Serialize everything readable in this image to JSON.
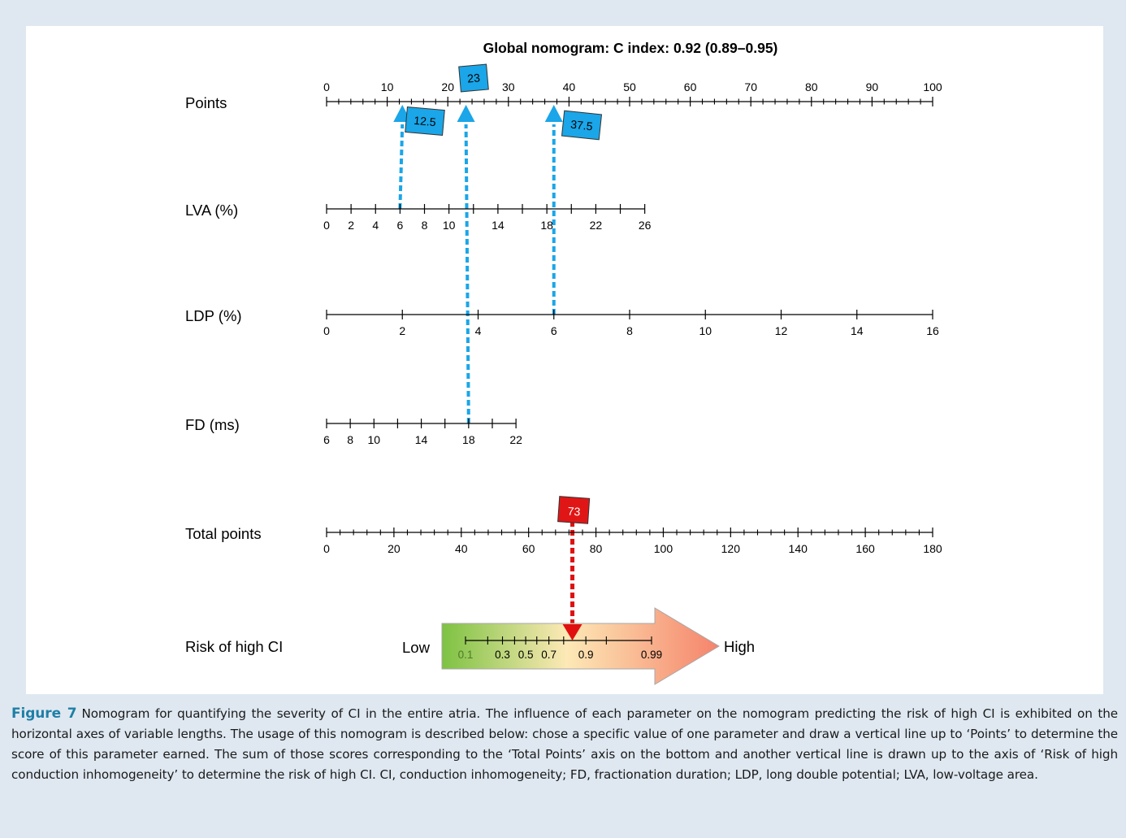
{
  "chart_data": {
    "type": "nomogram",
    "title": "Global nomogram: C index: 0.92 (0.89–0.95)",
    "axes": [
      {
        "key": "points",
        "label": "Points",
        "min": 0,
        "max": 100,
        "major": [
          0,
          10,
          20,
          30,
          40,
          50,
          60,
          70,
          80,
          90,
          100
        ],
        "minor_step": 2,
        "tick_labels": [
          "0",
          "10",
          "20",
          "30",
          "40",
          "50",
          "60",
          "70",
          "80",
          "90",
          "100"
        ]
      },
      {
        "key": "lva",
        "label": "LVA (%)",
        "min": 0,
        "max": 26,
        "major": [
          0,
          2,
          4,
          6,
          8,
          10,
          12,
          14,
          16,
          18,
          20,
          22,
          24,
          26
        ],
        "tick_labels": [
          "0",
          "2",
          "4",
          "6",
          "8",
          "10",
          "14",
          "18",
          "22",
          "26"
        ],
        "tick_label_values": [
          0,
          2,
          4,
          6,
          8,
          10,
          14,
          18,
          22,
          26
        ],
        "points_range": [
          0,
          52.5
        ]
      },
      {
        "key": "ldp",
        "label": "LDP (%)",
        "min": 0,
        "max": 16,
        "major": [
          0,
          2,
          4,
          6,
          8,
          10,
          12,
          14,
          16
        ],
        "tick_labels": [
          "0",
          "2",
          "4",
          "6",
          "8",
          "10",
          "12",
          "14",
          "16"
        ],
        "points_range": [
          0,
          100
        ]
      },
      {
        "key": "fd",
        "label": "FD (ms)",
        "min": 6,
        "max": 22,
        "major": [
          6,
          8,
          10,
          12,
          14,
          16,
          18,
          20,
          22
        ],
        "tick_labels": [
          "6",
          "8",
          "10",
          "14",
          "18",
          "22"
        ],
        "tick_label_values": [
          6,
          8,
          10,
          14,
          18,
          22
        ],
        "points_range": [
          0,
          31.25
        ]
      },
      {
        "key": "total",
        "label": "Total points",
        "min": 0,
        "max": 180,
        "major": [
          0,
          20,
          40,
          60,
          80,
          100,
          120,
          140,
          160,
          180
        ],
        "minor_step": 4,
        "tick_labels": [
          "0",
          "20",
          "40",
          "60",
          "80",
          "100",
          "120",
          "140",
          "160",
          "180"
        ]
      }
    ],
    "risk": {
      "label": "Risk of high CI",
      "low_label": "Low",
      "high_label": "High",
      "ticks": [
        0.1,
        0.2,
        0.3,
        0.4,
        0.5,
        0.6,
        0.7,
        0.8,
        0.9,
        0.95,
        0.99
      ],
      "tick_labels": [
        "0.1",
        "0.3",
        "0.5",
        "0.7",
        "0.9",
        "0.99"
      ],
      "tick_label_values": [
        0.1,
        0.3,
        0.5,
        0.7,
        0.9,
        0.99
      ],
      "gradient_colors": [
        "#7dc242",
        "#fde9b6",
        "#f5836b"
      ]
    },
    "annotations": [
      {
        "axis": "lva",
        "value": 6,
        "points": 12.5,
        "label": "12.5",
        "color": "#1aa6e8"
      },
      {
        "axis": "fd",
        "value": 18,
        "points": 23,
        "label": "23",
        "color": "#1aa6e8"
      },
      {
        "axis": "ldp",
        "value": 6,
        "points": 37.5,
        "label": "37.5",
        "color": "#1aa6e8"
      },
      {
        "axis": "total",
        "value": 73,
        "label": "73",
        "color": "#e01010"
      }
    ]
  },
  "caption": {
    "label": "Figure 7",
    "text": "Nomogram for quantifying the severity of CI in the entire atria. The influence of each parameter on the nomogram predicting the risk of high CI is exhibited on the horizontal axes of variable lengths. The usage of this nomogram is described below: chose a specific value of one parameter and draw a vertical line up to ‘Points’ to determine the score of this parameter earned. The sum of those scores corresponding to the ‘Total Points’ axis on the bottom and another vertical line is drawn up to the axis of ‘Risk of high conduction inhomogeneity’ to determine the risk of high CI. CI, conduction inhomogeneity; FD, fractionation duration; LDP, long double potential; LVA, low-voltage area."
  }
}
